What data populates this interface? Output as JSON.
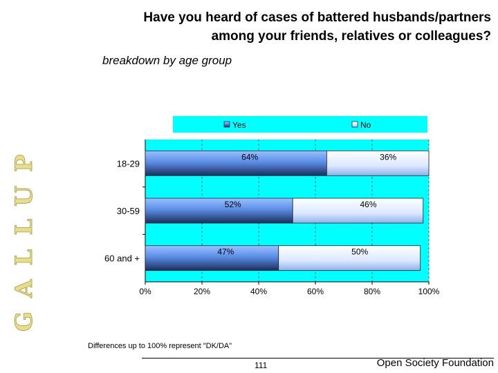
{
  "brand": {
    "letters": [
      "G",
      "A",
      "L",
      "L",
      "U",
      "P"
    ]
  },
  "header": {
    "title_line1": "Have you heard of cases of battered husbands/partners",
    "title_line2": "among your friends, relatives or colleagues?",
    "subtitle": "breakdown by age group"
  },
  "chart_data": {
    "type": "bar",
    "orientation": "horizontal",
    "stacked": true,
    "categories": [
      "18-29",
      "30-59",
      "60 and +"
    ],
    "series": [
      {
        "name": "Yes",
        "values": [
          64,
          52,
          47
        ],
        "labels": [
          "64%",
          "52%",
          "47%"
        ],
        "color": "#4a7fd8"
      },
      {
        "name": "No",
        "values": [
          36,
          46,
          50
        ],
        "labels": [
          "36%",
          "46%",
          "50%"
        ],
        "color": "#c8dcff"
      }
    ],
    "xlim": [
      0,
      100
    ],
    "x_ticks": [
      "0%",
      "20%",
      "40%",
      "60%",
      "80%",
      "100%"
    ],
    "legend_position": "top",
    "plot_background": "#00ffff",
    "grid": true
  },
  "footnote": "Differences up to 100% represent \"DK/DA\"",
  "footer": {
    "page_number": "111",
    "organization": "Open Society Foundation"
  }
}
